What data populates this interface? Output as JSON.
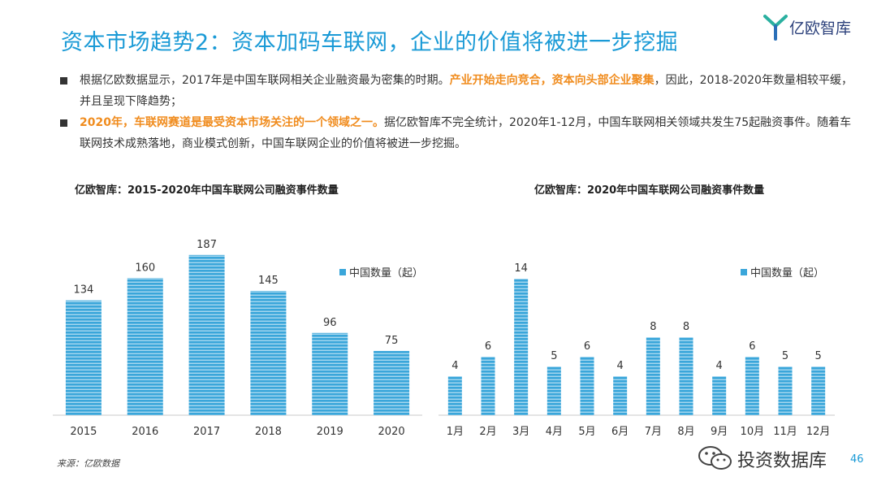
{
  "page": {
    "title": "资本市场趋势2：资本加码车联网，企业的价值将被进一步挖掘",
    "page_number": "46",
    "source": "来源：亿欧数据"
  },
  "brand": {
    "logo_text": "亿欧智库",
    "accent_color": "#1a9ad6",
    "highlight_color": "#f08c1e"
  },
  "bullets": {
    "b1_part1": "根据亿欧数据显示，2017年是中国车联网相关企业融资最为密集的时期。",
    "b1_hl": "产业开始走向竞合，资本向头部企业聚集",
    "b1_part2": "，因此，2018-2020年数量相较平缓，并且呈现下降趋势；",
    "b2_hl": "2020年，车联网赛道是最受资本市场关注的一个领域之一。",
    "b2_part2": "据亿欧智库不完全统计，2020年1-12月，中国车联网相关领域共发生75起融资事件。随着车联网技术成熟落地，商业模式创新，中国车联网企业的价值将被进一步挖掘。"
  },
  "watermark": {
    "text": "投资数据库",
    "icon": "wechat-icon"
  },
  "chart_data": [
    {
      "type": "bar",
      "title": "亿欧智库：2015-2020年中国车联网公司融资事件数量",
      "legend": "中国数量（起）",
      "legend_position": "top-right",
      "categories": [
        "2015",
        "2016",
        "2017",
        "2018",
        "2019",
        "2020"
      ],
      "values": [
        134,
        160,
        187,
        145,
        96,
        75
      ],
      "ylim": [
        0,
        220
      ],
      "color": "#3aa6da"
    },
    {
      "type": "bar",
      "title": "亿欧智库：2020年中国车联网公司融资事件数量",
      "legend": "中国数量（起）",
      "legend_position": "top-right",
      "categories": [
        "1月",
        "2月",
        "3月",
        "4月",
        "5月",
        "6月",
        "7月",
        "8月",
        "9月",
        "10月",
        "11月",
        "12月"
      ],
      "values": [
        4,
        6,
        14,
        5,
        6,
        4,
        8,
        8,
        4,
        6,
        5,
        5
      ],
      "ylim": [
        0,
        17
      ],
      "color": "#3aa6da"
    }
  ]
}
